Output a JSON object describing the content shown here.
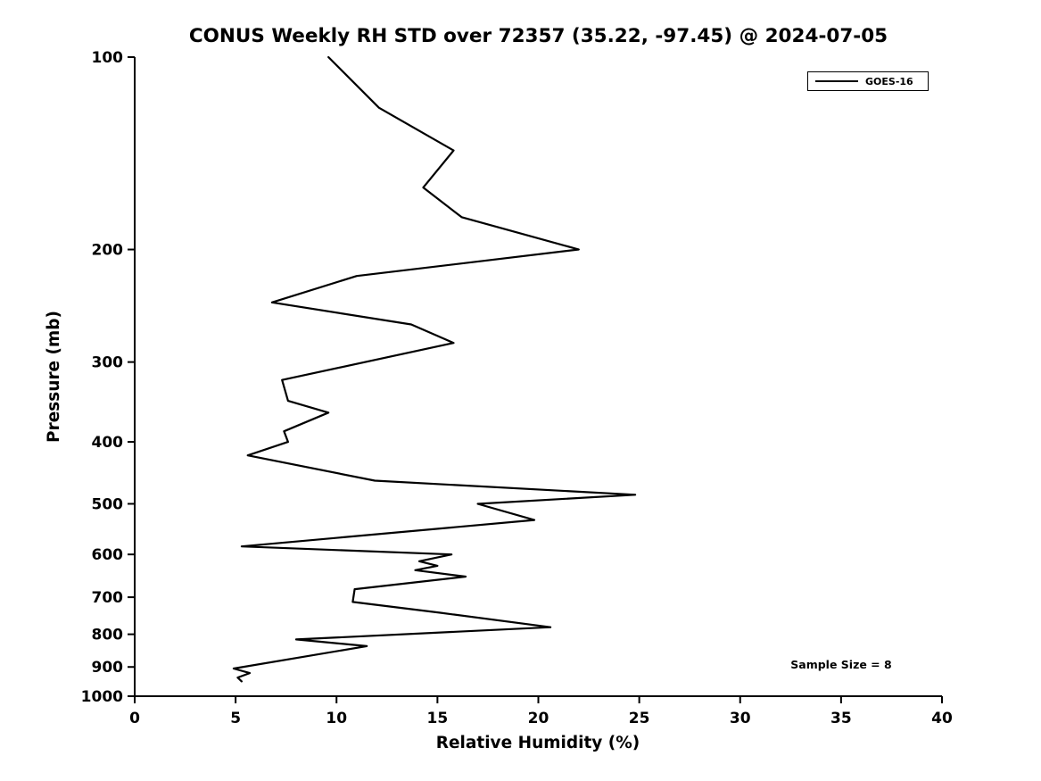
{
  "chart_data": {
    "type": "line",
    "title": "CONUS Weekly RH STD over 72357 (35.22, -97.45) @ 2024-07-05",
    "xlabel": "Relative Humidity (%)",
    "ylabel": "Pressure (mb)",
    "annotation": "Sample Size = 8",
    "xlim": [
      0,
      40
    ],
    "x_ticks": [
      0,
      5,
      10,
      15,
      20,
      25,
      30,
      35,
      40
    ],
    "y_scale": "log",
    "ylim": [
      100,
      1000
    ],
    "y_axis_direction": "pressure increases downward",
    "y_ticks": [
      100,
      200,
      300,
      400,
      500,
      600,
      700,
      800,
      900,
      1000
    ],
    "grid": false,
    "legend": {
      "position": "upper right",
      "entries": [
        "GOES-16"
      ]
    },
    "line_color": "#000000",
    "background_color": "#ffffff",
    "series": [
      {
        "name": "GOES-16",
        "color": "#000000",
        "rh_percent": [
          9.6,
          12.1,
          15.8,
          14.3,
          16.2,
          22.0,
          11.0,
          6.8,
          13.7,
          15.8,
          7.3,
          7.6,
          9.6,
          7.4,
          7.6,
          5.6,
          11.9,
          24.8,
          17.0,
          19.8,
          5.3,
          15.7,
          14.1,
          15.0,
          13.9,
          16.4,
          10.9,
          10.8,
          15.1,
          20.6,
          8.0,
          11.5,
          4.9,
          5.7,
          5.1,
          5.3
        ],
        "pressure_mb": [
          100,
          120,
          140,
          160,
          178,
          200,
          220,
          242,
          262,
          280,
          320,
          345,
          360,
          385,
          400,
          420,
          460,
          484,
          500,
          530,
          583,
          600,
          615,
          625,
          635,
          650,
          680,
          712,
          740,
          780,
          815,
          835,
          905,
          920,
          935,
          948
        ]
      }
    ]
  }
}
